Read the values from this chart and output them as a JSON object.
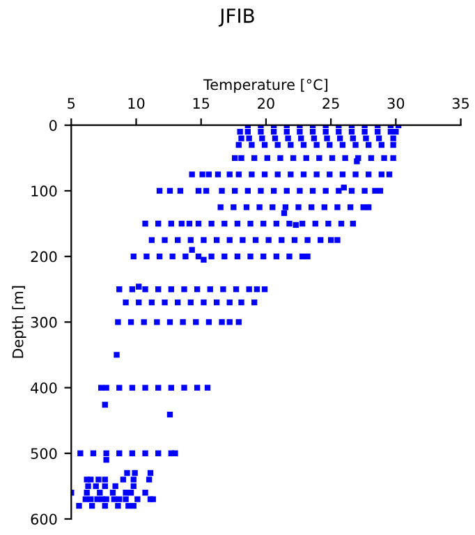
{
  "chart_data": {
    "type": "scatter",
    "title": "JFIB",
    "xlabel": "Temperature [°C]",
    "ylabel": "Depth [m]",
    "xlim": [
      5,
      35
    ],
    "xticks": [
      5,
      10,
      15,
      20,
      25,
      30,
      35
    ],
    "ylim": [
      600,
      0
    ],
    "yticks": [
      0,
      100,
      200,
      300,
      400,
      500,
      600
    ],
    "marker": "square",
    "grid": false,
    "legend": false,
    "series": [
      {
        "color": "#0000ff",
        "x": [
          18.6,
          19.6,
          20.6,
          21.6,
          22.6,
          23.6,
          24.6,
          25.6,
          26.6,
          27.6,
          28.6,
          29.6,
          30.2
        ],
        "values": [
          0,
          0,
          0,
          0,
          0,
          0,
          0,
          0,
          0,
          0,
          0,
          0,
          0
        ]
      },
      {
        "color": "#0000ff",
        "x": [
          18.0,
          18.6,
          19.6,
          20.6,
          21.6,
          22.6,
          23.6,
          24.6,
          25.6,
          26.6,
          27.6,
          28.6,
          29.6,
          30.0
        ],
        "values": [
          10,
          10,
          10,
          10,
          10,
          10,
          10,
          10,
          10,
          10,
          10,
          10,
          10,
          10
        ]
      },
      {
        "color": "#0000ff",
        "x": [
          18.1,
          18.7,
          19.7,
          20.7,
          21.7,
          22.7,
          23.7,
          24.7,
          25.7,
          26.7,
          27.7,
          28.7,
          29.8
        ],
        "values": [
          20,
          20,
          20,
          20,
          20,
          20,
          20,
          20,
          20,
          20,
          20,
          20,
          20
        ]
      },
      {
        "color": "#0000ff",
        "x": [
          17.9,
          18.9,
          19.9,
          20.9,
          21.9,
          22.9,
          23.9,
          24.9,
          25.9,
          26.9,
          27.9,
          28.9,
          29.8
        ],
        "values": [
          30,
          30,
          30,
          30,
          30,
          30,
          30,
          30,
          30,
          30,
          30,
          30,
          30
        ]
      },
      {
        "color": "#0000ff",
        "x": [
          17.6,
          18.1,
          19.1,
          20.1,
          21.1,
          22.1,
          23.1,
          24.1,
          25.1,
          26.1,
          27.1,
          28.1,
          29.1,
          29.8,
          27.0
        ],
        "values": [
          50,
          50,
          50,
          50,
          50,
          50,
          50,
          50,
          50,
          50,
          50,
          50,
          50,
          50,
          55
        ]
      },
      {
        "color": "#0000ff",
        "x": [
          14.3,
          15.1,
          15.6,
          16.3,
          17.2,
          17.9,
          18.9,
          19.9,
          20.9,
          21.9,
          22.9,
          23.9,
          24.9,
          25.9,
          26.9,
          27.9,
          28.9,
          29.5
        ],
        "values": [
          75,
          75,
          75,
          75,
          75,
          75,
          75,
          75,
          75,
          75,
          75,
          75,
          75,
          75,
          75,
          75,
          75,
          75
        ]
      },
      {
        "color": "#0000ff",
        "x": [
          11.8,
          12.6,
          13.4,
          14.8,
          15.4,
          16.6,
          17.6,
          18.6,
          19.6,
          20.6,
          21.6,
          22.6,
          23.6,
          24.6,
          25.6,
          26.6,
          27.6,
          28.4,
          28.8,
          26.0
        ],
        "values": [
          100,
          100,
          100,
          100,
          100,
          100,
          100,
          100,
          100,
          100,
          100,
          100,
          100,
          100,
          100,
          100,
          100,
          100,
          100,
          95
        ]
      },
      {
        "color": "#0000ff",
        "x": [
          16.5,
          17.5,
          18.5,
          19.5,
          20.5,
          21.5,
          22.5,
          23.5,
          24.5,
          25.5,
          26.5,
          27.5,
          27.9,
          21.4
        ],
        "values": [
          125,
          125,
          125,
          125,
          125,
          125,
          125,
          125,
          125,
          125,
          125,
          125,
          125,
          134
        ]
      },
      {
        "color": "#0000ff",
        "x": [
          10.7,
          11.7,
          12.7,
          13.5,
          14.1,
          14.8,
          15.8,
          16.8,
          17.8,
          18.8,
          19.8,
          20.8,
          21.8,
          22.8,
          23.8,
          24.8,
          25.8,
          26.7,
          22.3
        ],
        "values": [
          150,
          150,
          150,
          150,
          150,
          150,
          150,
          150,
          150,
          150,
          150,
          150,
          150,
          150,
          150,
          150,
          150,
          150,
          152
        ]
      },
      {
        "color": "#0000ff",
        "x": [
          11.2,
          12.2,
          13.2,
          14.2,
          15.2,
          16.2,
          17.2,
          18.2,
          19.2,
          20.2,
          21.2,
          22.2,
          23.2,
          24.2,
          25.0,
          25.5,
          14.3
        ],
        "values": [
          175,
          175,
          175,
          175,
          175,
          175,
          175,
          175,
          175,
          175,
          175,
          175,
          175,
          175,
          175,
          175,
          190
        ]
      },
      {
        "color": "#0000ff",
        "x": [
          9.8,
          10.8,
          11.8,
          12.8,
          13.8,
          14.8,
          15.8,
          16.8,
          17.8,
          18.8,
          19.8,
          20.8,
          21.8,
          22.8,
          23.2,
          15.2
        ],
        "values": [
          200,
          200,
          200,
          200,
          200,
          200,
          200,
          200,
          200,
          200,
          200,
          200,
          200,
          200,
          200,
          205
        ]
      },
      {
        "color": "#0000ff",
        "x": [
          8.7,
          9.7,
          10.7,
          11.7,
          12.7,
          13.7,
          14.7,
          15.7,
          16.7,
          17.7,
          18.7,
          19.3,
          19.9,
          10.2
        ],
        "values": [
          250,
          250,
          250,
          250,
          250,
          250,
          250,
          250,
          250,
          250,
          250,
          250,
          250,
          246
        ]
      },
      {
        "color": "#0000ff",
        "x": [
          9.2,
          10.2,
          11.2,
          12.2,
          13.2,
          14.2,
          15.2,
          16.2,
          17.2,
          18.1,
          19.1
        ],
        "values": [
          270,
          270,
          270,
          270,
          270,
          270,
          270,
          270,
          270,
          270,
          270
        ]
      },
      {
        "color": "#0000ff",
        "x": [
          8.6,
          9.6,
          10.6,
          11.6,
          12.6,
          13.6,
          14.6,
          15.6,
          16.6,
          17.2,
          17.9,
          8.5
        ],
        "values": [
          300,
          300,
          300,
          300,
          300,
          300,
          300,
          300,
          300,
          300,
          300,
          350
        ]
      },
      {
        "color": "#0000ff",
        "x": [
          7.3,
          7.7,
          8.7,
          9.7,
          10.7,
          11.7,
          12.7,
          13.7,
          14.7,
          15.5,
          7.6,
          12.6
        ],
        "values": [
          400,
          400,
          400,
          400,
          400,
          400,
          400,
          400,
          400,
          400,
          426,
          441
        ]
      },
      {
        "color": "#0000ff",
        "x": [
          5.7,
          6.7,
          7.7,
          8.7,
          9.7,
          10.7,
          11.7,
          12.7,
          13.0,
          7.7
        ],
        "values": [
          500,
          500,
          500,
          500,
          500,
          500,
          500,
          500,
          500,
          510
        ]
      },
      {
        "color": "#0000ff",
        "x": [
          9.3,
          9.9,
          11.1,
          6.2,
          6.5,
          7.1,
          7.6,
          9.0,
          9.8,
          11.0,
          6.3,
          6.9,
          7.6,
          8.4,
          9.8
        ],
        "values": [
          530,
          530,
          530,
          540,
          540,
          540,
          540,
          540,
          540,
          540,
          550,
          550,
          550,
          550,
          550
        ]
      },
      {
        "color": "#0000ff",
        "x": [
          5.0,
          6.2,
          7.2,
          8.2,
          9.2,
          9.6,
          10.7,
          6.1,
          6.5,
          7.0,
          7.4,
          7.7,
          8.3,
          8.7,
          9.2,
          10.1,
          11.1,
          11.3,
          5.6,
          6.6,
          7.6,
          8.6,
          9.4,
          9.8
        ],
        "values": [
          560,
          560,
          560,
          560,
          560,
          560,
          560,
          570,
          570,
          570,
          570,
          570,
          570,
          570,
          570,
          570,
          570,
          570,
          580,
          580,
          580,
          580,
          580,
          580
        ]
      }
    ]
  }
}
